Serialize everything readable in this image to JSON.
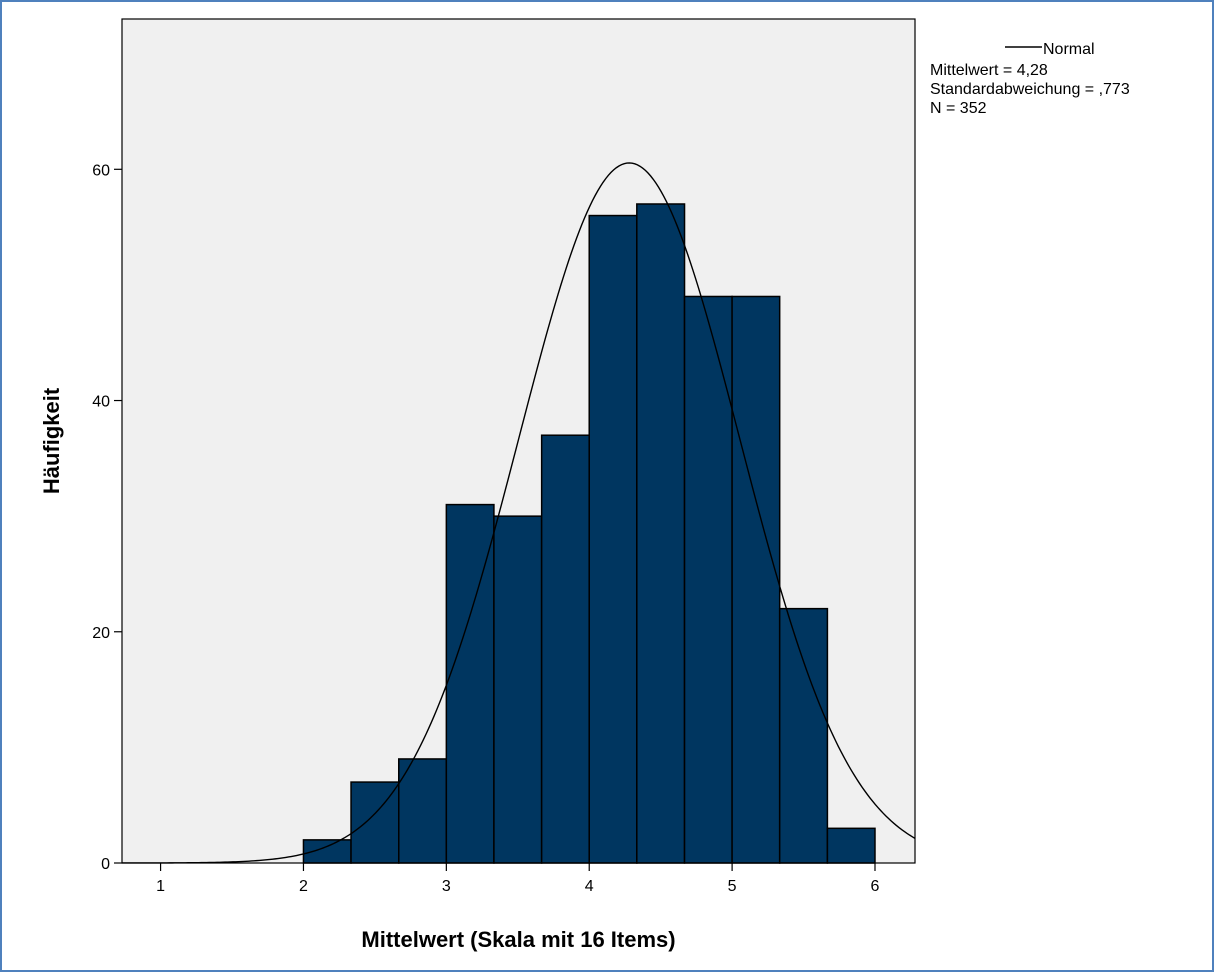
{
  "chart_data": {
    "type": "bar",
    "subtype": "histogram",
    "xlabel": "Mittelwert (Skala mit 16 Items)",
    "ylabel": "Häufigkeit",
    "xlim": [
      0.73,
      6.28
    ],
    "ylim": [
      0,
      73
    ],
    "x_ticks": [
      1,
      2,
      3,
      4,
      5,
      6
    ],
    "y_ticks": [
      0,
      20,
      40,
      60
    ],
    "bins": [
      {
        "start": 2.0,
        "end": 2.333,
        "count": 2
      },
      {
        "start": 2.333,
        "end": 2.667,
        "count": 7
      },
      {
        "start": 2.667,
        "end": 3.0,
        "count": 9
      },
      {
        "start": 3.0,
        "end": 3.333,
        "count": 31
      },
      {
        "start": 3.333,
        "end": 3.667,
        "count": 30
      },
      {
        "start": 3.667,
        "end": 4.0,
        "count": 37
      },
      {
        "start": 4.0,
        "end": 4.333,
        "count": 56
      },
      {
        "start": 4.333,
        "end": 4.667,
        "count": 57
      },
      {
        "start": 4.667,
        "end": 5.0,
        "count": 49
      },
      {
        "start": 5.0,
        "end": 5.333,
        "count": 49
      },
      {
        "start": 5.333,
        "end": 5.667,
        "count": 22
      },
      {
        "start": 5.667,
        "end": 6.0,
        "count": 3
      }
    ],
    "normal_curve": {
      "mean": 4.28,
      "sd": 0.773,
      "n": 352,
      "bin_width": 0.3333
    },
    "legend": {
      "line_label": "Normal",
      "stats": [
        "Mittelwert = 4,28",
        "Standardabweichung = ,773",
        "N = 352"
      ]
    },
    "colors": {
      "bar_fill": "#003660",
      "bar_stroke": "#000000",
      "plot_background": "#f0f0f0",
      "curve": "#000000"
    },
    "grid": false,
    "legend_position": "top-right"
  }
}
